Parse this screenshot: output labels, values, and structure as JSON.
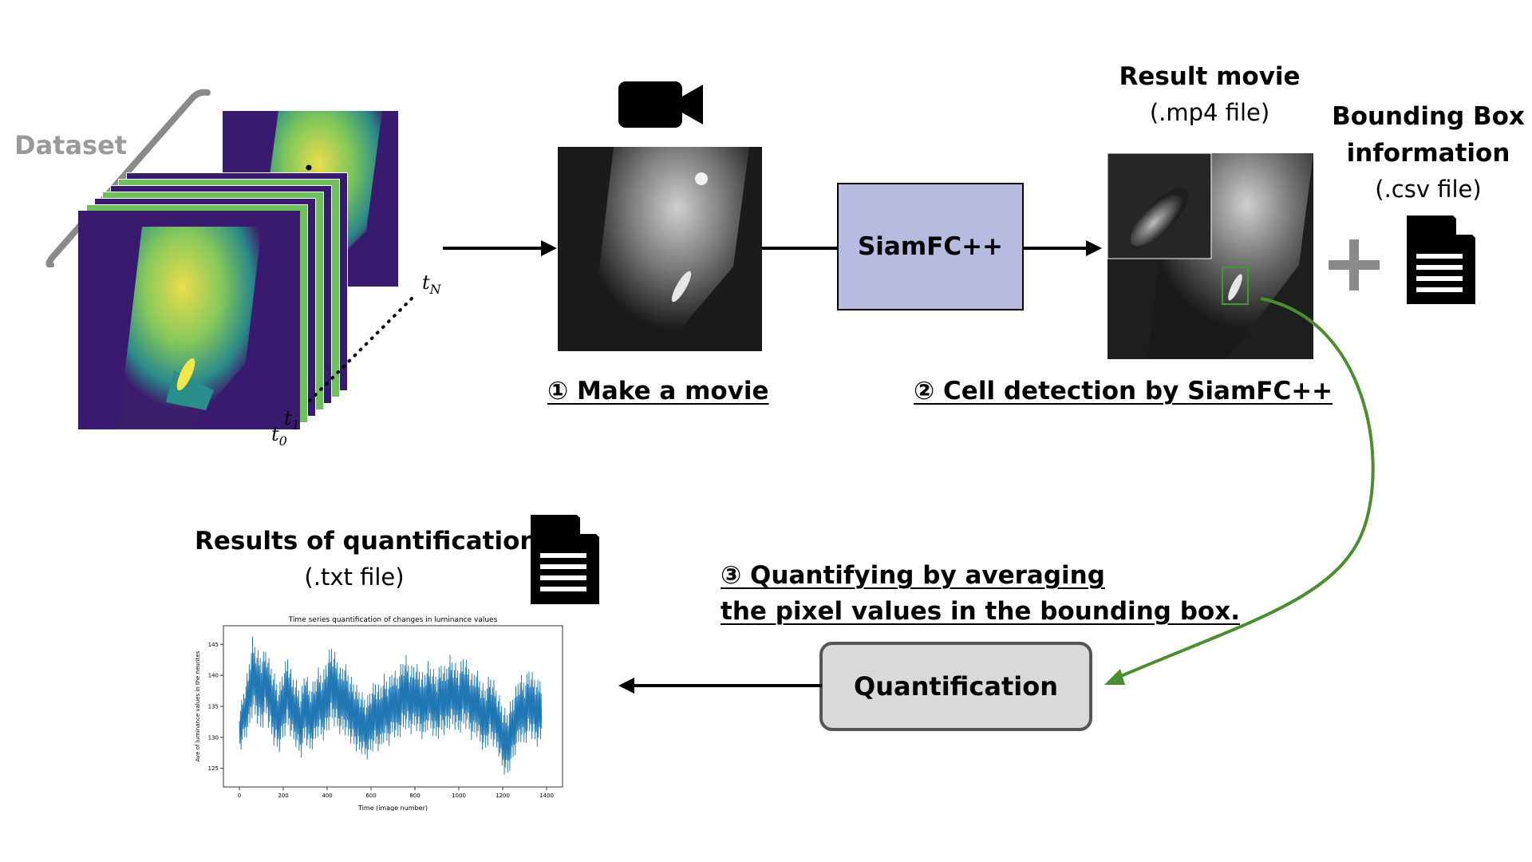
{
  "dataset": {
    "label": "Dataset",
    "time_labels": {
      "t0": "t",
      "t0_sub": "0",
      "t1": "t",
      "t1_sub": "1",
      "tN": "t",
      "tN_sub": "N"
    }
  },
  "steps": {
    "make_movie": "① Make a movie",
    "cell_detection": "② Cell detection by SiamFC++",
    "quantify_line1": "③ Quantifying by averaging",
    "quantify_line2": "the pixel values in the bounding box."
  },
  "boxes": {
    "siamfc": "SiamFC++",
    "quantification": "Quantification"
  },
  "result_movie": {
    "title": "Result movie",
    "subtitle": "(.mp4 file)"
  },
  "bbox_info": {
    "title_line1": "Bounding Box",
    "title_line2": "information",
    "subtitle": "(.csv file)"
  },
  "results": {
    "title": "Results of quantification",
    "subtitle": "(.txt file)"
  },
  "chart_data": {
    "type": "line",
    "title": "Time series quantification of changes in luminance values",
    "xlabel": "Time (image number)",
    "ylabel": "Ave of luminance values in the neurites",
    "xlim": [
      0,
      1400
    ],
    "ylim": [
      122,
      148
    ],
    "xticks": [
      0,
      200,
      400,
      600,
      800,
      1000,
      1200,
      1400
    ],
    "yticks": [
      125,
      130,
      135,
      140,
      145
    ],
    "series": [
      {
        "color": "#1f77b4",
        "x": [
          0,
          20,
          40,
          60,
          80,
          100,
          120,
          140,
          160,
          180,
          200,
          220,
          240,
          260,
          280,
          300,
          320,
          340,
          360,
          380,
          400,
          420,
          440,
          460,
          480,
          500,
          520,
          540,
          560,
          580,
          600,
          620,
          640,
          660,
          680,
          700,
          720,
          740,
          760,
          780,
          800,
          820,
          840,
          860,
          880,
          900,
          920,
          940,
          960,
          980,
          1000,
          1020,
          1040,
          1060,
          1080,
          1100,
          1120,
          1140,
          1160,
          1180,
          1200,
          1220,
          1240,
          1260,
          1280,
          1300,
          1320,
          1340,
          1360,
          1380
        ],
        "y": [
          131,
          134,
          136,
          141,
          139,
          138,
          140,
          137,
          135,
          133,
          136,
          138,
          135,
          134,
          132,
          136,
          133,
          134,
          136,
          135,
          137,
          139,
          138,
          136,
          137,
          135,
          134,
          133,
          132,
          131,
          133,
          134,
          133,
          135,
          134,
          136,
          135,
          137,
          138,
          136,
          137,
          136,
          135,
          137,
          136,
          135,
          137,
          136,
          138,
          137,
          136,
          138,
          137,
          135,
          136,
          134,
          133,
          135,
          134,
          132,
          130,
          129,
          131,
          133,
          135,
          134,
          136,
          135,
          134,
          135
        ],
        "y_min_band": [
          127,
          129,
          130,
          133,
          132,
          130,
          133,
          130,
          128,
          127,
          129,
          131,
          129,
          128,
          126,
          129,
          127,
          128,
          130,
          129,
          130,
          132,
          131,
          130,
          130,
          129,
          128,
          127,
          127,
          126,
          127,
          128,
          127,
          129,
          128,
          130,
          129,
          130,
          131,
          130,
          131,
          130,
          129,
          131,
          130,
          129,
          130,
          130,
          131,
          131,
          130,
          131,
          131,
          129,
          130,
          128,
          127,
          129,
          128,
          127,
          124,
          123,
          125,
          127,
          129,
          128,
          130,
          129,
          128,
          129
        ],
        "y_max_band": [
          135,
          138,
          142,
          147,
          145,
          144,
          145,
          143,
          141,
          139,
          142,
          144,
          141,
          140,
          138,
          142,
          139,
          140,
          142,
          141,
          144,
          146,
          144,
          142,
          143,
          141,
          140,
          139,
          138,
          137,
          139,
          140,
          139,
          141,
          140,
          142,
          141,
          143,
          144,
          142,
          143,
          142,
          141,
          143,
          142,
          141,
          143,
          142,
          144,
          143,
          142,
          144,
          143,
          141,
          142,
          140,
          139,
          141,
          140,
          138,
          136,
          135,
          137,
          139,
          141,
          140,
          142,
          141,
          140,
          141
        ]
      }
    ]
  }
}
